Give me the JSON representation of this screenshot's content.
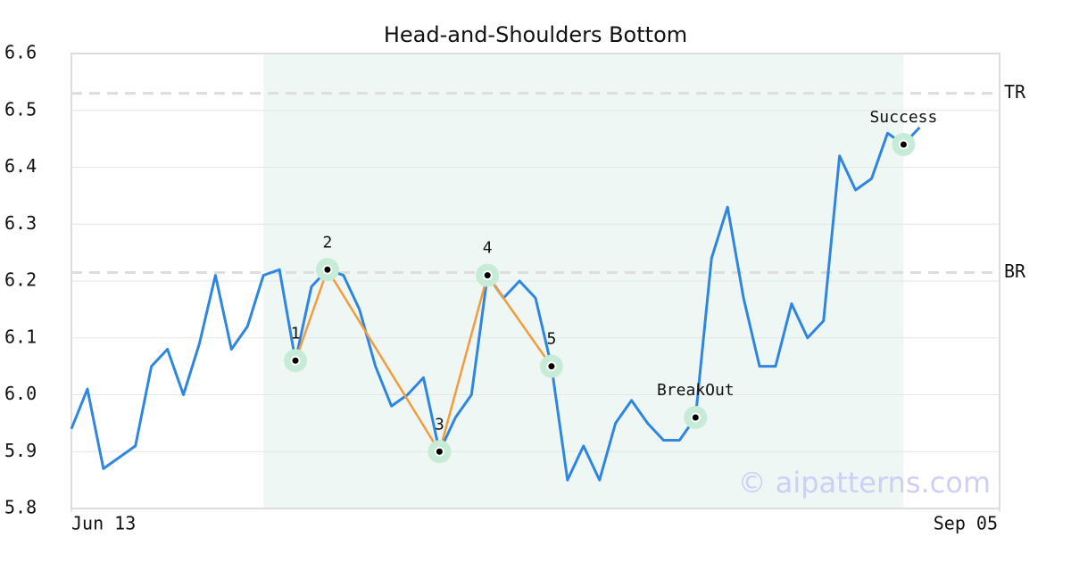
{
  "chart_data": {
    "type": "line",
    "title": "Head-and-Shoulders Bottom",
    "x": [
      0,
      1,
      2,
      3,
      4,
      5,
      6,
      7,
      8,
      9,
      10,
      11,
      12,
      13,
      14,
      15,
      16,
      17,
      18,
      19,
      20,
      21,
      22,
      23,
      24,
      25,
      26,
      27,
      28,
      29,
      30,
      31,
      32,
      33,
      34,
      35,
      36,
      37,
      38,
      39,
      40,
      41,
      42,
      43,
      44,
      45,
      46,
      47,
      48,
      49,
      50,
      51,
      52,
      53
    ],
    "values": [
      5.94,
      6.01,
      5.87,
      5.89,
      5.91,
      6.05,
      6.08,
      6.0,
      6.09,
      6.21,
      6.08,
      6.12,
      6.21,
      6.22,
      6.06,
      6.19,
      6.22,
      6.21,
      6.15,
      6.05,
      5.98,
      6.0,
      6.03,
      5.9,
      5.96,
      6.0,
      6.21,
      6.17,
      6.2,
      6.17,
      6.05,
      5.85,
      5.91,
      5.85,
      5.95,
      5.99,
      5.95,
      5.92,
      5.92,
      5.96,
      6.24,
      6.33,
      6.17,
      6.05,
      6.05,
      6.16,
      6.1,
      6.13,
      6.42,
      6.36,
      6.38,
      6.46,
      6.44,
      6.47
    ],
    "color": "#2f86e0",
    "xlim": [
      0,
      58
    ],
    "xticks": [
      {
        "value": 0,
        "label": "Jun 13"
      },
      {
        "value": 58,
        "label": "Sep 05"
      }
    ],
    "ylim": [
      5.8,
      6.6
    ],
    "yticks": [
      5.8,
      5.9,
      {
        "value": 6,
        "label": "6.0"
      },
      6.1,
      6.2,
      6.3,
      6.4,
      6.5,
      6.6
    ],
    "grid": true,
    "highlight": [
      12,
      52
    ],
    "pattern_color": "#f39c3c",
    "pattern_points": [
      {
        "x": 14,
        "y": 6.06,
        "label": "1"
      },
      {
        "x": 16,
        "y": 6.22,
        "label": "2"
      },
      {
        "x": 23,
        "y": 5.9,
        "label": "3"
      },
      {
        "x": 26,
        "y": 6.21,
        "label": "4"
      },
      {
        "x": 30,
        "y": 6.05,
        "label": "5"
      }
    ],
    "events": [
      {
        "x": 39,
        "y": 5.96,
        "label": "BreakOut"
      },
      {
        "x": 52,
        "y": 6.44,
        "label": "Success"
      }
    ],
    "levels": [
      {
        "label": "TR",
        "value": 6.53
      },
      {
        "label": "BR",
        "value": 6.215
      }
    ],
    "watermark": "© aipatterns.com"
  }
}
